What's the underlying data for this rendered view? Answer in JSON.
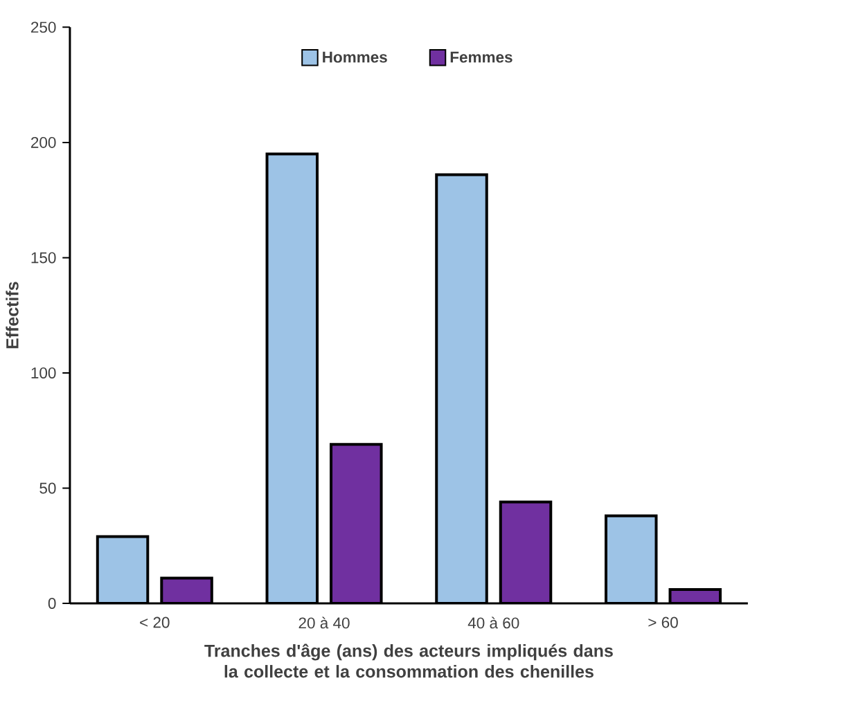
{
  "chart_data": {
    "type": "bar",
    "xlabel": "Tranches d'âge (ans) des acteurs impliqués dans la collecte et la consommation des chenilles",
    "ylabel": "Effectifs",
    "categories": [
      "< 20",
      "20 à 40",
      "40 à 60",
      "> 60"
    ],
    "series": [
      {
        "name": "Hommes",
        "color": "#9dc3e6",
        "values": [
          29,
          195,
          186,
          38
        ]
      },
      {
        "name": "Femmes",
        "color": "#7030a0",
        "values": [
          11,
          69,
          44,
          6
        ]
      }
    ],
    "ylim": [
      0,
      250
    ],
    "yticks": [
      0,
      50,
      100,
      150,
      200,
      250
    ],
    "grid": false,
    "legend": "top"
  }
}
